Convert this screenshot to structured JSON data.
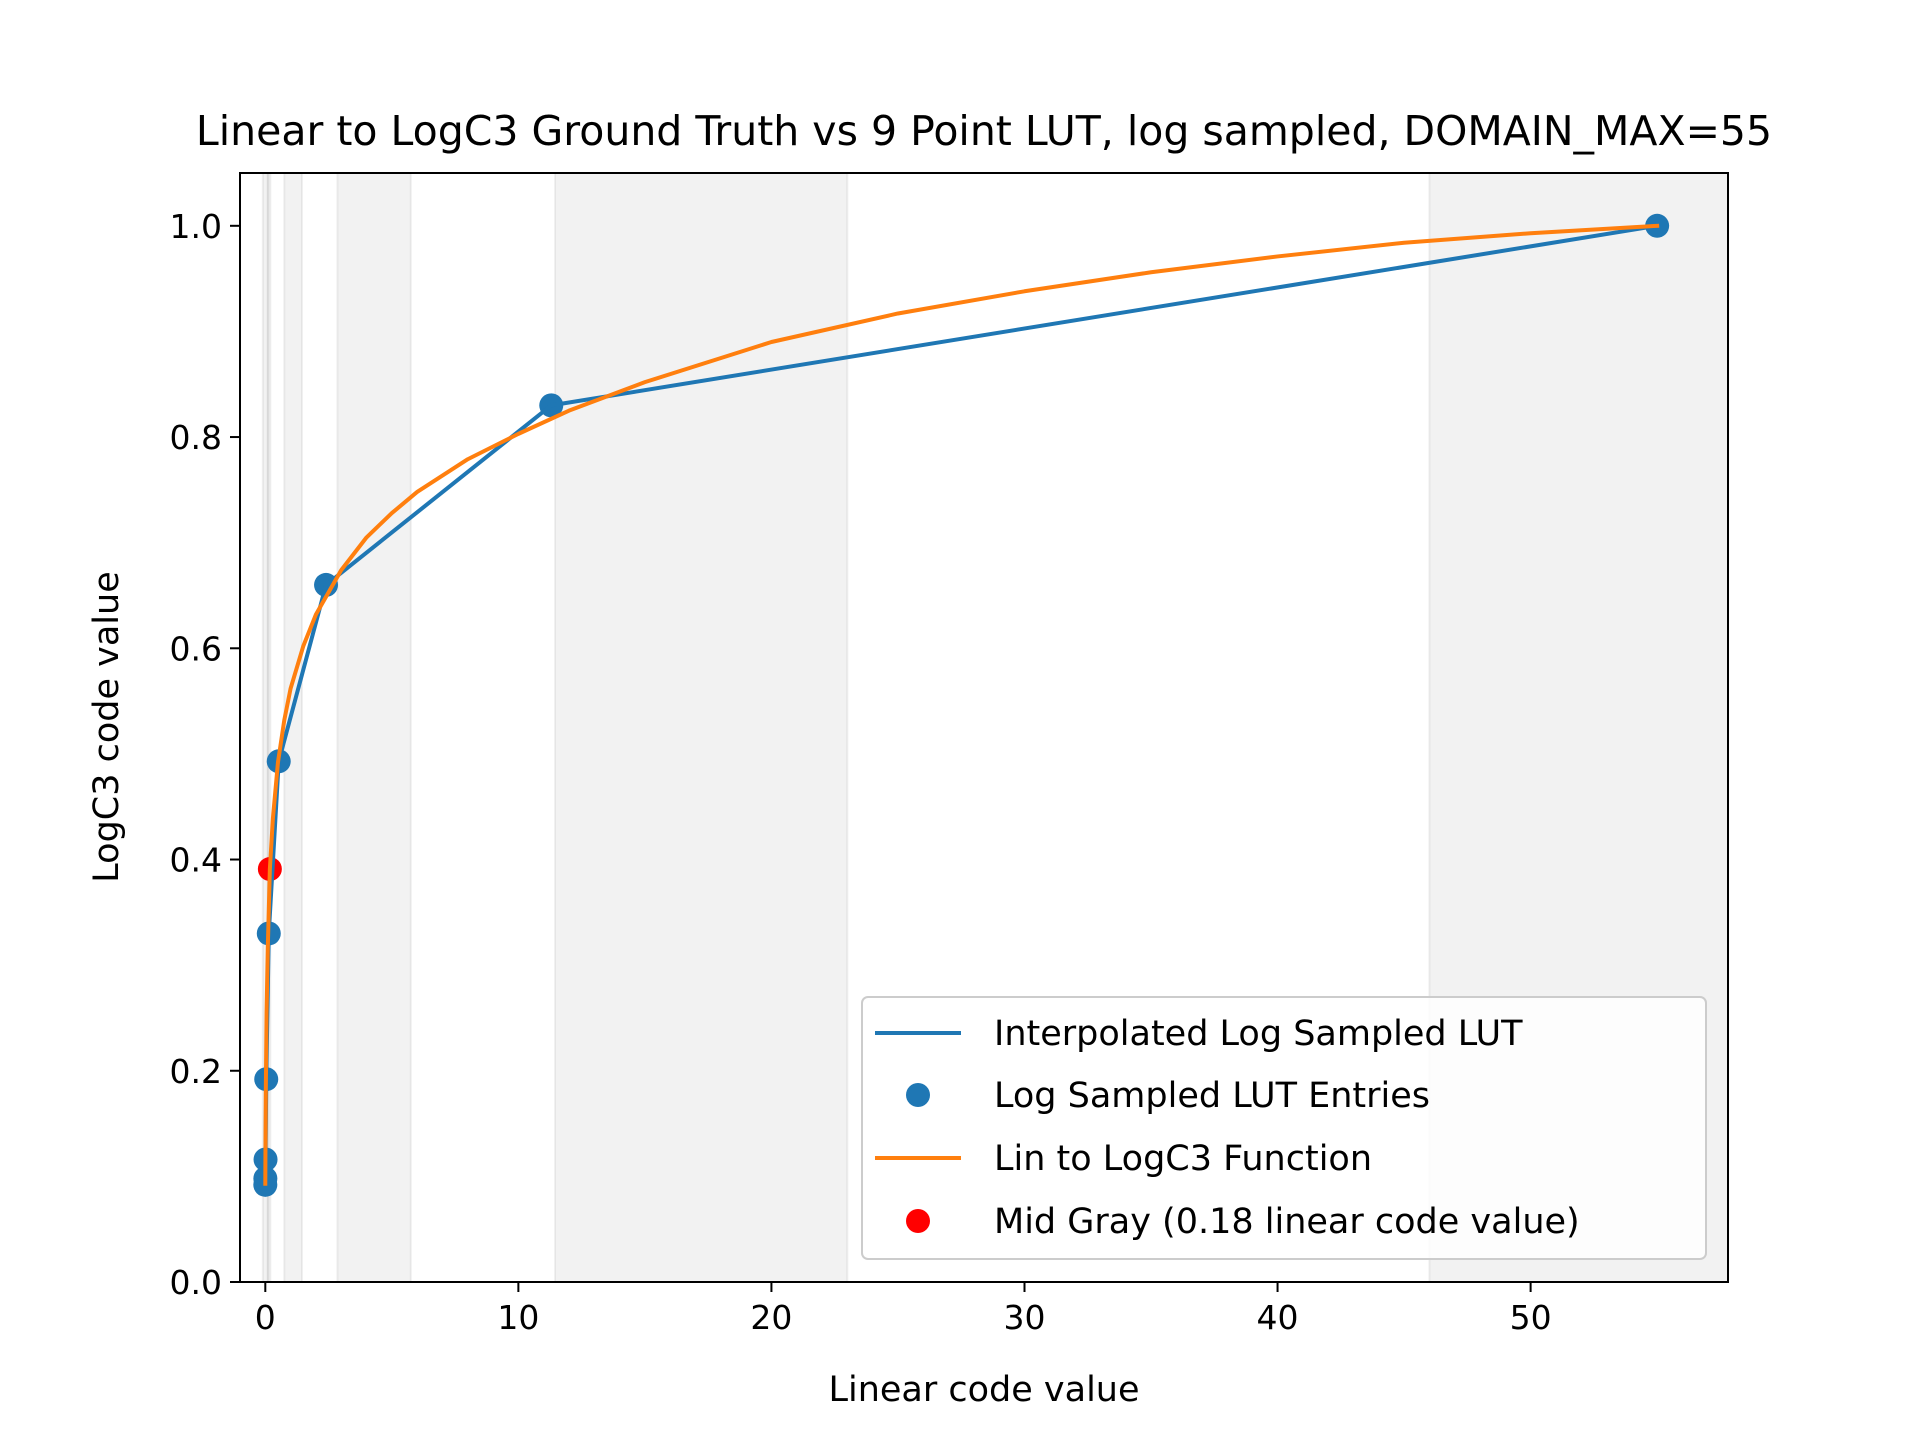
{
  "chart_data": {
    "type": "line",
    "title": "Linear to LogC3 Ground Truth vs 9 Point LUT, log sampled, DOMAIN_MAX=55",
    "xlabel": "Linear code value",
    "ylabel": "LogC3 code value",
    "xlim": [
      -1.0,
      57.8
    ],
    "ylim": [
      0.0,
      1.05
    ],
    "xticks": [
      0,
      10,
      20,
      30,
      40,
      50
    ],
    "xtick_labels": [
      "0",
      "10",
      "20",
      "30",
      "40",
      "50"
    ],
    "yticks": [
      0.0,
      0.2,
      0.4,
      0.6,
      0.8,
      1.0
    ],
    "ytick_labels": [
      "0.0",
      "0.2",
      "0.4",
      "0.6",
      "0.8",
      "1.0"
    ],
    "grid": false,
    "legend_position": "lower-right",
    "shaded_bands": [
      [
        -0.1,
        0.1
      ],
      [
        0.1,
        0.2
      ],
      [
        0.75,
        1.45
      ],
      [
        2.85,
        5.75
      ],
      [
        11.45,
        23.0
      ],
      [
        46.0,
        57.8
      ]
    ],
    "series": [
      {
        "name": "Interpolated Log Sampled LUT",
        "kind": "line",
        "color": "#1f77b4",
        "x": [
          0.0,
          0.0092,
          0.0368,
          0.1374,
          0.5303,
          2.4,
          11.3,
          55.0
        ],
        "y": [
          0.092,
          0.116,
          0.192,
          0.33,
          0.493,
          0.66,
          0.83,
          1.0
        ]
      },
      {
        "name": "Log Sampled LUT Entries",
        "kind": "scatter",
        "color": "#1f77b4",
        "x": [
          0.0,
          0.0018,
          0.0092,
          0.0368,
          0.1374,
          0.5303,
          2.4,
          11.3,
          55.0
        ],
        "y": [
          0.092,
          0.098,
          0.116,
          0.192,
          0.33,
          0.493,
          0.66,
          0.83,
          1.0
        ]
      },
      {
        "name": "Lin to LogC3 Function",
        "kind": "line",
        "color": "#ff7f0e",
        "x": [
          0.0,
          0.005,
          0.02,
          0.05,
          0.1,
          0.18,
          0.3,
          0.5,
          0.75,
          1.0,
          1.5,
          2.0,
          3.0,
          4.0,
          5.0,
          6.0,
          8.0,
          10.0,
          12.0,
          15.0,
          20.0,
          25.0,
          30.0,
          35.0,
          40.0,
          45.0,
          50.0,
          55.0
        ],
        "y": [
          0.093,
          0.12,
          0.18,
          0.255,
          0.318,
          0.391,
          0.439,
          0.492,
          0.532,
          0.562,
          0.602,
          0.632,
          0.674,
          0.705,
          0.728,
          0.748,
          0.779,
          0.803,
          0.825,
          0.852,
          0.89,
          0.917,
          0.938,
          0.956,
          0.971,
          0.984,
          0.993,
          1.0
        ]
      },
      {
        "name": "Mid Gray (0.18 linear code value)",
        "kind": "scatter",
        "color": "#ff0000",
        "x": [
          0.18
        ],
        "y": [
          0.391
        ]
      }
    ]
  }
}
